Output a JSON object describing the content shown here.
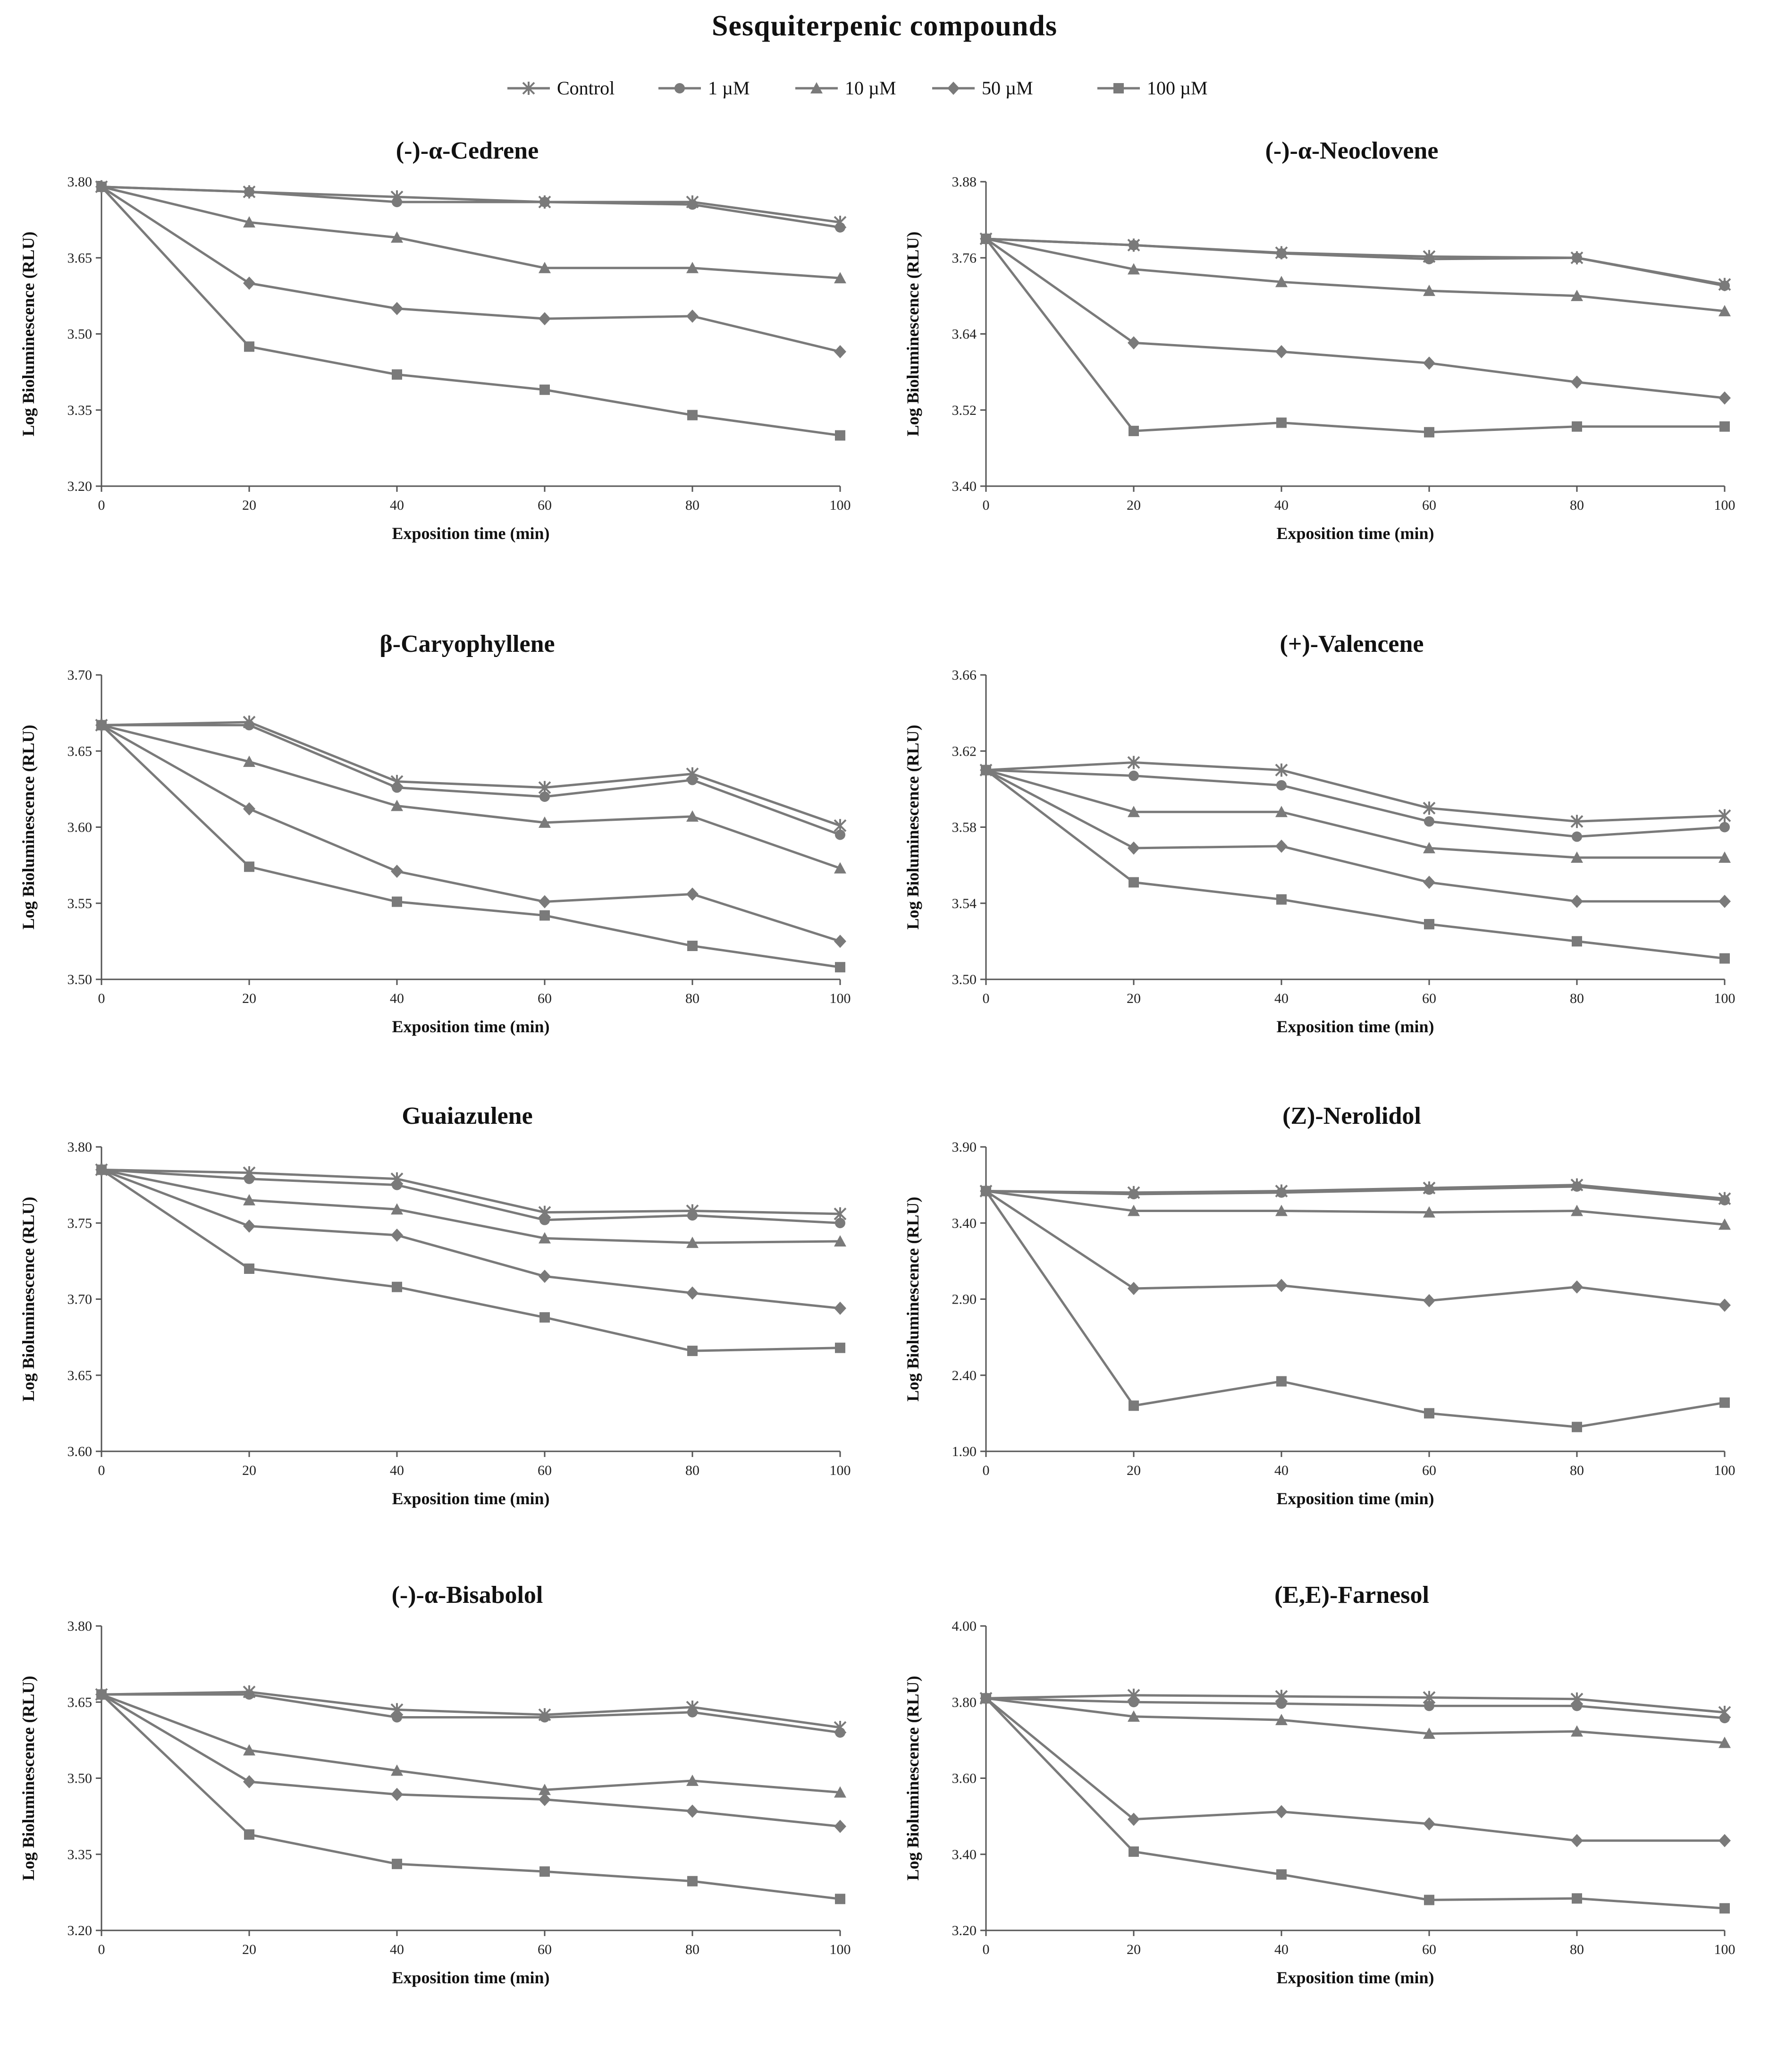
{
  "figure": {
    "title": "Sesquiterpenic compounds",
    "line_color": "#7a7a7a",
    "legend": [
      {
        "label": "Control",
        "marker": "asterisk"
      },
      {
        "label": "1 µM",
        "marker": "circle"
      },
      {
        "label": "10 µM",
        "marker": "triangle"
      },
      {
        "label": "50 µM",
        "marker": "diamond"
      },
      {
        "label": "100 µM",
        "marker": "square"
      }
    ]
  },
  "chart_data": [
    {
      "type": "line",
      "title": "(-)-α-Cedrene",
      "xlabel": "Exposition time (min)",
      "ylabel": "Log Bioluminescence  (RLU)",
      "x": [
        0,
        20,
        40,
        60,
        80,
        100
      ],
      "xticks": [
        "0",
        "20",
        "40",
        "60",
        "80",
        "100"
      ],
      "ylim": [
        3.2,
        3.8
      ],
      "yticks": [
        "3.20",
        "3.35",
        "3.50",
        "3.65",
        "3.80"
      ],
      "series": [
        {
          "name": "Control",
          "marker": "asterisk",
          "values": [
            3.79,
            3.78,
            3.77,
            3.76,
            3.76,
            3.72
          ]
        },
        {
          "name": "1 µM",
          "marker": "circle",
          "values": [
            3.79,
            3.78,
            3.76,
            3.76,
            3.755,
            3.71
          ]
        },
        {
          "name": "10 µM",
          "marker": "triangle",
          "values": [
            3.79,
            3.72,
            3.69,
            3.63,
            3.63,
            3.61
          ]
        },
        {
          "name": "50 µM",
          "marker": "diamond",
          "values": [
            3.79,
            3.6,
            3.55,
            3.53,
            3.535,
            3.465
          ]
        },
        {
          "name": "100 µM",
          "marker": "square",
          "values": [
            3.79,
            3.475,
            3.42,
            3.39,
            3.34,
            3.3
          ]
        }
      ]
    },
    {
      "type": "line",
      "title": "(-)-α-Neoclovene",
      "xlabel": "Exposition time (min)",
      "ylabel": "Log Bioluminescence  (RLU)",
      "x": [
        0,
        20,
        40,
        60,
        80,
        100
      ],
      "xticks": [
        "0",
        "20",
        "40",
        "60",
        "80",
        "100"
      ],
      "ylim": [
        3.4,
        3.88
      ],
      "yticks": [
        "3.40",
        "3.52",
        "3.64",
        "3.76",
        "3.88"
      ],
      "series": [
        {
          "name": "Control",
          "marker": "asterisk",
          "values": [
            3.79,
            3.78,
            3.768,
            3.762,
            3.76,
            3.718
          ]
        },
        {
          "name": "1 µM",
          "marker": "circle",
          "values": [
            3.79,
            3.78,
            3.767,
            3.758,
            3.76,
            3.716
          ]
        },
        {
          "name": "10 µM",
          "marker": "triangle",
          "values": [
            3.79,
            3.742,
            3.722,
            3.708,
            3.7,
            3.676
          ]
        },
        {
          "name": "50 µM",
          "marker": "diamond",
          "values": [
            3.79,
            3.626,
            3.612,
            3.594,
            3.564,
            3.539
          ]
        },
        {
          "name": "100 µM",
          "marker": "square",
          "values": [
            3.79,
            3.487,
            3.5,
            3.485,
            3.494,
            3.494
          ]
        }
      ]
    },
    {
      "type": "line",
      "title": "β-Caryophyllene",
      "xlabel": "Exposition time (min)",
      "ylabel": "Log Bioluminescence  (RLU)",
      "x": [
        0,
        20,
        40,
        60,
        80,
        100
      ],
      "xticks": [
        "0",
        "20",
        "40",
        "60",
        "80",
        "100"
      ],
      "ylim": [
        3.5,
        3.7
      ],
      "yticks": [
        "3.50",
        "3.55",
        "3.60",
        "3.65",
        "3.70"
      ],
      "series": [
        {
          "name": "Control",
          "marker": "asterisk",
          "values": [
            3.667,
            3.669,
            3.63,
            3.626,
            3.635,
            3.601
          ]
        },
        {
          "name": "1 µM",
          "marker": "circle",
          "values": [
            3.667,
            3.667,
            3.626,
            3.62,
            3.631,
            3.595
          ]
        },
        {
          "name": "10 µM",
          "marker": "triangle",
          "values": [
            3.667,
            3.643,
            3.614,
            3.603,
            3.607,
            3.573
          ]
        },
        {
          "name": "50 µM",
          "marker": "diamond",
          "values": [
            3.667,
            3.612,
            3.571,
            3.551,
            3.556,
            3.525
          ]
        },
        {
          "name": "100 µM",
          "marker": "square",
          "values": [
            3.667,
            3.574,
            3.551,
            3.542,
            3.522,
            3.508
          ]
        }
      ]
    },
    {
      "type": "line",
      "title": "(+)-Valencene",
      "xlabel": "Exposition time (min)",
      "ylabel": "Log Bioluminescence  (RLU)",
      "x": [
        0,
        20,
        40,
        60,
        80,
        100
      ],
      "xticks": [
        "0",
        "20",
        "40",
        "60",
        "80",
        "100"
      ],
      "ylim": [
        3.5,
        3.66
      ],
      "yticks": [
        "3.50",
        "3.54",
        "3.58",
        "3.62",
        "3.66"
      ],
      "series": [
        {
          "name": "Control",
          "marker": "asterisk",
          "values": [
            3.61,
            3.614,
            3.61,
            3.59,
            3.583,
            3.586
          ]
        },
        {
          "name": "1 µM",
          "marker": "circle",
          "values": [
            3.61,
            3.607,
            3.602,
            3.583,
            3.575,
            3.58
          ]
        },
        {
          "name": "10 µM",
          "marker": "triangle",
          "values": [
            3.61,
            3.588,
            3.588,
            3.569,
            3.564,
            3.564
          ]
        },
        {
          "name": "50 µM",
          "marker": "diamond",
          "values": [
            3.61,
            3.569,
            3.57,
            3.551,
            3.541,
            3.541
          ]
        },
        {
          "name": "100 µM",
          "marker": "square",
          "values": [
            3.61,
            3.551,
            3.542,
            3.529,
            3.52,
            3.511
          ]
        }
      ]
    },
    {
      "type": "line",
      "title": "Guaiazulene",
      "xlabel": "Exposition time (min)",
      "ylabel": "Log Bioluminescence  (RLU)",
      "x": [
        0,
        20,
        40,
        60,
        80,
        100
      ],
      "xticks": [
        "0",
        "20",
        "40",
        "60",
        "80",
        "100"
      ],
      "ylim": [
        3.6,
        3.8
      ],
      "yticks": [
        "3.60",
        "3.65",
        "3.70",
        "3.75",
        "3.80"
      ],
      "series": [
        {
          "name": "Control",
          "marker": "asterisk",
          "values": [
            3.785,
            3.783,
            3.779,
            3.757,
            3.758,
            3.756
          ]
        },
        {
          "name": "1 µM",
          "marker": "circle",
          "values": [
            3.785,
            3.779,
            3.775,
            3.752,
            3.755,
            3.75
          ]
        },
        {
          "name": "10 µM",
          "marker": "triangle",
          "values": [
            3.785,
            3.765,
            3.759,
            3.74,
            3.737,
            3.738
          ]
        },
        {
          "name": "50 µM",
          "marker": "diamond",
          "values": [
            3.785,
            3.748,
            3.742,
            3.715,
            3.704,
            3.694
          ]
        },
        {
          "name": "100 µM",
          "marker": "square",
          "values": [
            3.785,
            3.72,
            3.708,
            3.688,
            3.666,
            3.668
          ]
        }
      ]
    },
    {
      "type": "line",
      "title": "(Z)-Nerolidol",
      "xlabel": "Exposition time (min)",
      "ylabel": "Log Bioluminescence  (RLU)",
      "x": [
        0,
        20,
        40,
        60,
        80,
        100
      ],
      "xticks": [
        "0",
        "20",
        "40",
        "60",
        "80",
        "100"
      ],
      "ylim": [
        1.9,
        3.9
      ],
      "yticks": [
        "1.90",
        "2.40",
        "2.90",
        "3.40",
        "3.90"
      ],
      "series": [
        {
          "name": "Control",
          "marker": "asterisk",
          "values": [
            3.61,
            3.6,
            3.61,
            3.63,
            3.65,
            3.56
          ]
        },
        {
          "name": "1 µM",
          "marker": "circle",
          "values": [
            3.61,
            3.59,
            3.6,
            3.62,
            3.64,
            3.55
          ]
        },
        {
          "name": "10 µM",
          "marker": "triangle",
          "values": [
            3.61,
            3.48,
            3.48,
            3.47,
            3.48,
            3.39
          ]
        },
        {
          "name": "50 µM",
          "marker": "diamond",
          "values": [
            3.61,
            2.97,
            2.99,
            2.89,
            2.98,
            2.86
          ]
        },
        {
          "name": "100 µM",
          "marker": "square",
          "values": [
            3.61,
            2.2,
            2.36,
            2.15,
            2.06,
            2.22
          ]
        }
      ]
    },
    {
      "type": "line",
      "title": "(-)-α-Bisabolol",
      "xlabel": "Exposition time (min)",
      "ylabel": "Log Bioluminescence  (RLU)",
      "x": [
        0,
        20,
        40,
        60,
        80,
        100
      ],
      "xticks": [
        "0",
        "20",
        "40",
        "60",
        "80",
        "100"
      ],
      "ylim": [
        3.2,
        3.8
      ],
      "yticks": [
        "3.20",
        "3.35",
        "3.50",
        "3.65",
        "3.80"
      ],
      "series": [
        {
          "name": "Control",
          "marker": "asterisk",
          "values": [
            3.665,
            3.67,
            3.635,
            3.625,
            3.64,
            3.6
          ]
        },
        {
          "name": "1 µM",
          "marker": "circle",
          "values": [
            3.665,
            3.665,
            3.62,
            3.62,
            3.63,
            3.59
          ]
        },
        {
          "name": "10 µM",
          "marker": "triangle",
          "values": [
            3.665,
            3.555,
            3.515,
            3.477,
            3.495,
            3.472
          ]
        },
        {
          "name": "50 µM",
          "marker": "diamond",
          "values": [
            3.665,
            3.493,
            3.468,
            3.458,
            3.435,
            3.405
          ]
        },
        {
          "name": "100 µM",
          "marker": "square",
          "values": [
            3.665,
            3.389,
            3.331,
            3.316,
            3.297,
            3.262
          ]
        }
      ]
    },
    {
      "type": "line",
      "title": "(E,E)-Farnesol",
      "xlabel": "Exposition time (min)",
      "ylabel": "Log Bioluminescence  (RLU)",
      "x": [
        0,
        20,
        40,
        60,
        80,
        100
      ],
      "xticks": [
        "0",
        "20",
        "40",
        "60",
        "80",
        "100"
      ],
      "ylim": [
        3.2,
        4.0
      ],
      "yticks": [
        "3.20",
        "3.40",
        "3.60",
        "3.80",
        "4.00"
      ],
      "series": [
        {
          "name": "Control",
          "marker": "asterisk",
          "values": [
            3.81,
            3.818,
            3.815,
            3.812,
            3.808,
            3.773
          ]
        },
        {
          "name": "1 µM",
          "marker": "circle",
          "values": [
            3.81,
            3.8,
            3.796,
            3.79,
            3.79,
            3.758
          ]
        },
        {
          "name": "10 µM",
          "marker": "triangle",
          "values": [
            3.81,
            3.762,
            3.753,
            3.717,
            3.723,
            3.693
          ]
        },
        {
          "name": "50 µM",
          "marker": "diamond",
          "values": [
            3.81,
            3.492,
            3.512,
            3.48,
            3.436,
            3.436
          ]
        },
        {
          "name": "100 µM",
          "marker": "square",
          "values": [
            3.81,
            3.407,
            3.347,
            3.28,
            3.284,
            3.258
          ]
        }
      ]
    }
  ]
}
